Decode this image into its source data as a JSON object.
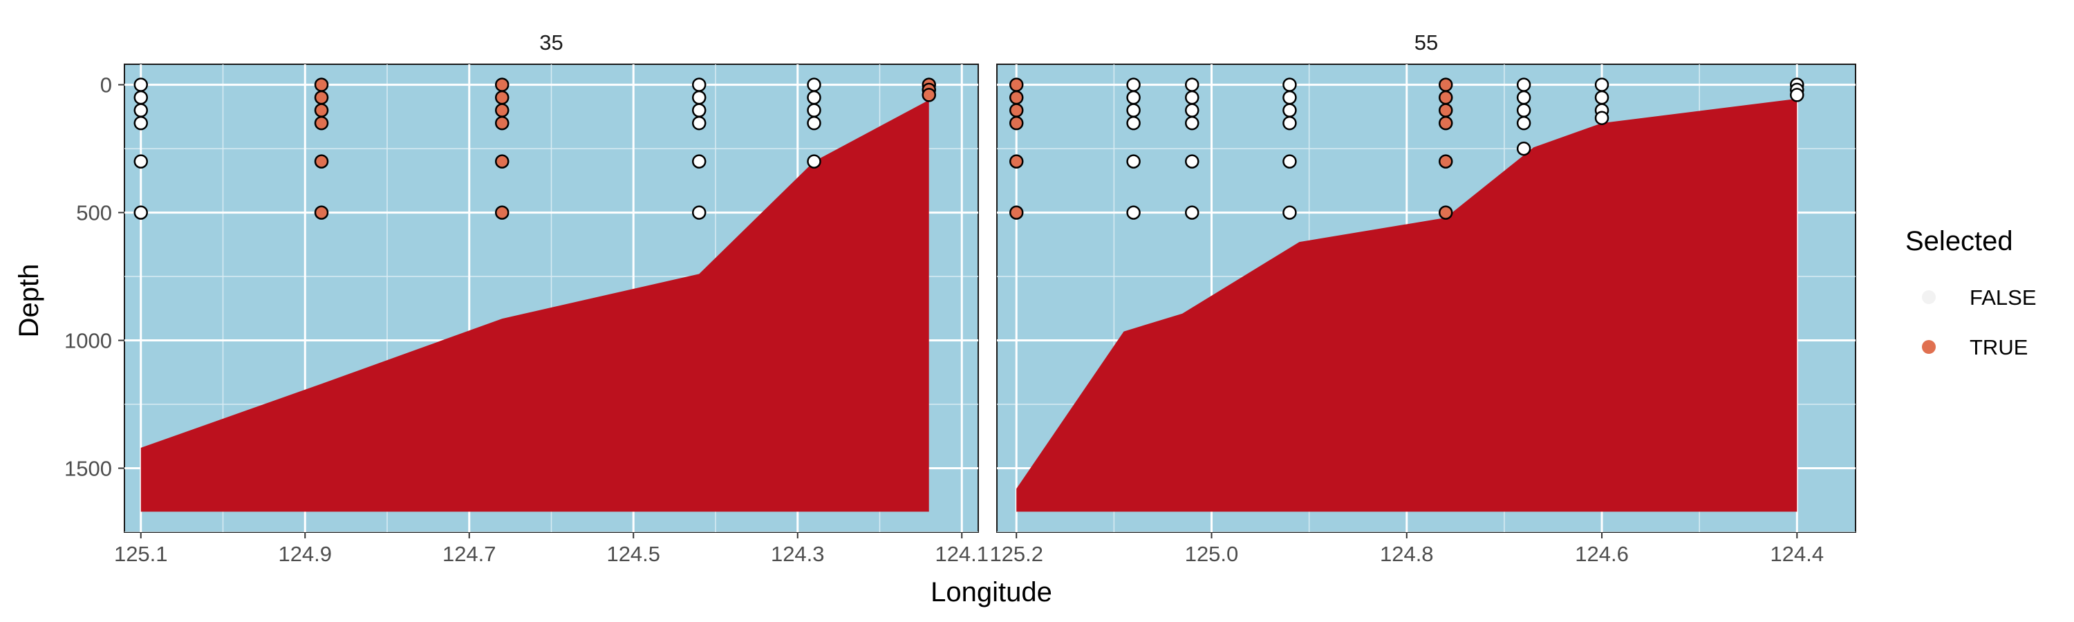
{
  "chart_data": {
    "type": "scatter",
    "xlabel": "Longitude",
    "ylabel": "Depth",
    "y_reversed": true,
    "ylim": [
      1750,
      -80
    ],
    "yticks": [
      0,
      500,
      1000,
      1500
    ],
    "legend": {
      "title": "Selected",
      "position": "right",
      "items": [
        {
          "label": "FALSE",
          "color": "#f2f2f2"
        },
        {
          "label": "TRUE",
          "color": "#e07050"
        }
      ]
    },
    "colors": {
      "panel": "#a0cfe0",
      "bathymetry": "#bc111e",
      "false_point": "#ffffff",
      "true_point": "#e07050"
    },
    "panels": [
      {
        "strip": "35",
        "xlim": [
          125.12,
          124.08
        ],
        "xticks": [
          125.1,
          124.9,
          124.7,
          124.5,
          124.3,
          124.1
        ],
        "xtick_labels": [
          "125.1",
          "124.9",
          "124.7",
          "124.5",
          "124.3",
          "124.1"
        ],
        "bathymetry": [
          {
            "x": 125.1,
            "y": 1420
          },
          {
            "x": 124.88,
            "y": 1170
          },
          {
            "x": 124.66,
            "y": 915
          },
          {
            "x": 124.42,
            "y": 740
          },
          {
            "x": 124.28,
            "y": 300
          },
          {
            "x": 124.14,
            "y": 60
          }
        ],
        "bathymetry_floor": 1670,
        "stations": [
          {
            "x": 125.1,
            "depths": [
              0,
              50,
              100,
              150,
              300,
              500
            ],
            "selected": false
          },
          {
            "x": 124.88,
            "depths": [
              0,
              50,
              100,
              150,
              300,
              500
            ],
            "selected": true
          },
          {
            "x": 124.66,
            "depths": [
              0,
              50,
              100,
              150,
              300,
              500
            ],
            "selected": true
          },
          {
            "x": 124.42,
            "depths": [
              0,
              50,
              100,
              150,
              300,
              500
            ],
            "selected": false
          },
          {
            "x": 124.28,
            "depths": [
              0,
              50,
              100,
              150,
              300
            ],
            "selected": false
          },
          {
            "x": 124.14,
            "depths": [
              0,
              20,
              40
            ],
            "selected": true
          }
        ]
      },
      {
        "strip": "55",
        "xlim": [
          125.22,
          124.34
        ],
        "xticks": [
          125.2,
          125.0,
          124.8,
          124.6,
          124.4
        ],
        "xtick_labels": [
          "125.2",
          "125.0",
          "124.8",
          "124.6",
          "124.4"
        ],
        "bathymetry": [
          {
            "x": 125.2,
            "y": 1580
          },
          {
            "x": 125.09,
            "y": 965
          },
          {
            "x": 125.03,
            "y": 895
          },
          {
            "x": 124.91,
            "y": 615
          },
          {
            "x": 124.76,
            "y": 520
          },
          {
            "x": 124.67,
            "y": 245
          },
          {
            "x": 124.6,
            "y": 150
          },
          {
            "x": 124.4,
            "y": 55
          }
        ],
        "bathymetry_floor": 1670,
        "stations": [
          {
            "x": 125.2,
            "depths": [
              0,
              50,
              100,
              150,
              300,
              500
            ],
            "selected": true
          },
          {
            "x": 125.08,
            "depths": [
              0,
              50,
              100,
              150,
              300,
              500
            ],
            "selected": false
          },
          {
            "x": 125.02,
            "depths": [
              0,
              50,
              100,
              150,
              300,
              500
            ],
            "selected": false
          },
          {
            "x": 124.92,
            "depths": [
              0,
              50,
              100,
              150,
              300,
              500
            ],
            "selected": false
          },
          {
            "x": 124.76,
            "depths": [
              0,
              50,
              100,
              150,
              300,
              500
            ],
            "selected": true
          },
          {
            "x": 124.68,
            "depths": [
              0,
              50,
              100,
              150,
              250
            ],
            "selected": false
          },
          {
            "x": 124.6,
            "depths": [
              0,
              50,
              100,
              130
            ],
            "selected": false
          },
          {
            "x": 124.4,
            "depths": [
              0,
              20,
              40
            ],
            "selected": false
          }
        ]
      }
    ]
  }
}
